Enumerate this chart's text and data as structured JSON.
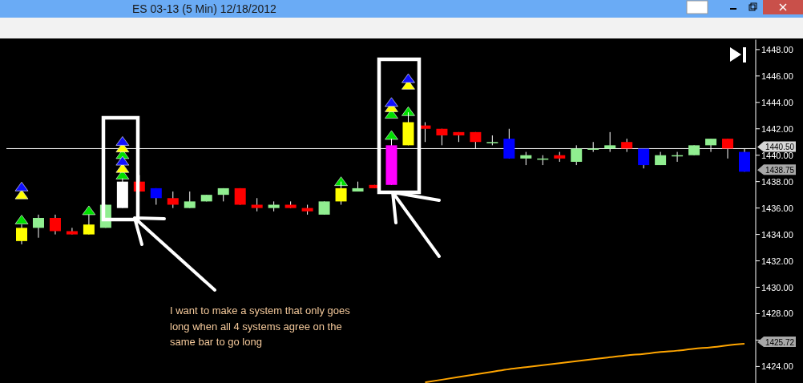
{
  "chart_data": {
    "type": "candlestick",
    "title": "ES 03-13 (5 Min)  12/18/2012",
    "categories": [
      null,
      null,
      null,
      null,
      null,
      null,
      null,
      null,
      null,
      null,
      null,
      null,
      null,
      null,
      null,
      null,
      null,
      null,
      null,
      null,
      null,
      null,
      null,
      null,
      null,
      null,
      null,
      null,
      null,
      null,
      null,
      null,
      null,
      null,
      null,
      null,
      null,
      null,
      null,
      null,
      null,
      null,
      null,
      null
    ],
    "ohlc": [
      [
        1433.5,
        1434.75,
        1433.25,
        1434.5
      ],
      [
        1434.5,
        1435.5,
        1433.75,
        1435.25
      ],
      [
        1435.25,
        1435.5,
        1434,
        1434.25
      ],
      [
        1434.25,
        1434.5,
        1434,
        1434
      ],
      [
        1434,
        1435.5,
        1434,
        1434.75
      ],
      [
        1434.5,
        1436.25,
        1434.5,
        1436.25
      ],
      [
        1436,
        1438.25,
        1436,
        1438
      ],
      [
        1438,
        1438.5,
        1437.25,
        1437.25
      ],
      [
        1437.5,
        1437.5,
        1436.25,
        1436.75
      ],
      [
        1436.75,
        1437.25,
        1436,
        1436.25
      ],
      [
        1436,
        1437.25,
        1436,
        1436.5
      ],
      [
        1436.5,
        1437,
        1436.5,
        1437
      ],
      [
        1437,
        1437.5,
        1436.5,
        1437.5
      ],
      [
        1437.5,
        1437.5,
        1436.25,
        1436.25
      ],
      [
        1436.25,
        1436.75,
        1435.75,
        1436
      ],
      [
        1436,
        1436.5,
        1435.75,
        1436.25
      ],
      [
        1436.25,
        1436.5,
        1436,
        1436
      ],
      [
        1436,
        1436.25,
        1435.5,
        1435.75
      ],
      [
        1435.5,
        1436.5,
        1435.5,
        1436.5
      ],
      [
        1436.5,
        1438,
        1436.25,
        1437.5
      ],
      [
        1437.25,
        1438,
        1437.25,
        1437.5
      ],
      [
        1437.75,
        1437.75,
        1437.5,
        1437.5
      ],
      [
        1437.75,
        1441.25,
        1437.75,
        1440.75
      ],
      [
        1440.75,
        1443.25,
        1440.75,
        1442.5
      ],
      [
        1442.25,
        1442.5,
        1441,
        1442
      ],
      [
        1442,
        1442,
        1440.75,
        1441.5
      ],
      [
        1441.75,
        1441.75,
        1441,
        1441.5
      ],
      [
        1441.75,
        1441.75,
        1440.5,
        1441
      ],
      [
        1441,
        1441.5,
        1440.75,
        1441
      ],
      [
        1441.25,
        1442,
        1439.75,
        1439.75
      ],
      [
        1439.75,
        1440.25,
        1439.25,
        1440
      ],
      [
        1439.75,
        1440,
        1439.25,
        1439.75
      ],
      [
        1440,
        1440.25,
        1439.5,
        1439.75
      ],
      [
        1439.5,
        1440.75,
        1439.25,
        1440.5
      ],
      [
        1440.5,
        1441,
        1440.25,
        1440.5
      ],
      [
        1440.5,
        1441.75,
        1440.25,
        1440.75
      ],
      [
        1441,
        1441.25,
        1440.25,
        1440.5
      ],
      [
        1440.5,
        1440.5,
        1439,
        1439.25
      ],
      [
        1439.25,
        1440.25,
        1439.25,
        1440
      ],
      [
        1440,
        1440.25,
        1439.5,
        1440
      ],
      [
        1440,
        1440.75,
        1440,
        1440.75
      ],
      [
        1440.75,
        1441.25,
        1440.25,
        1441.25
      ],
      [
        1441.25,
        1441.25,
        1439.75,
        1440.5
      ],
      [
        1440.25,
        1440.5,
        1438.75,
        1438.75
      ]
    ],
    "colors": [
      "#ffff00",
      "#90ee90",
      "#ff0000",
      "#ff0000",
      "#ffff00",
      "#90ee90",
      "#ffffff",
      "#ff0000",
      "#0000ff",
      "#ff0000",
      "#90ee90",
      "#90ee90",
      "#90ee90",
      "#ff0000",
      "#ff0000",
      "#90ee90",
      "#ff0000",
      "#ff0000",
      "#90ee90",
      "#ffff00",
      "#90ee90",
      "#ff0000",
      "#ff00ff",
      "#ffff00",
      "#ff0000",
      "#ff0000",
      "#ff0000",
      "#ff0000",
      "#90ee90",
      "#0000ff",
      "#90ee90",
      "#90ee90",
      "#ff0000",
      "#90ee90",
      "#90ee90",
      "#90ee90",
      "#ff0000",
      "#0000ff",
      "#90ee90",
      "#90ee90",
      "#90ee90",
      "#90ee90",
      "#ff0000",
      "#0000ff"
    ],
    "series": [
      {
        "type": "line",
        "color": "#ffa500",
        "values": [
          null,
          null,
          null,
          null,
          null,
          null,
          null,
          null,
          null,
          null,
          null,
          null,
          null,
          null,
          null,
          null,
          null,
          null,
          null,
          null,
          null,
          null,
          null,
          null,
          1422.8,
          1423.0,
          1423.2,
          1423.4,
          1423.6,
          1423.8,
          1423.95,
          1424.1,
          1424.25,
          1424.4,
          1424.55,
          1424.7,
          1424.85,
          1424.95,
          1425.1,
          1425.2,
          1425.35,
          1425.45,
          1425.6,
          1425.72
        ]
      },
      {
        "type": "scatter",
        "marker": "triangle",
        "color": "#00e000",
        "values": [
          1435.1,
          null,
          null,
          null,
          1435.8,
          null,
          1438.5,
          null,
          null,
          null,
          null,
          null,
          null,
          null,
          null,
          null,
          null,
          null,
          null,
          1438.0,
          null,
          null,
          1441.5,
          1443.3,
          null,
          null,
          null,
          null,
          null,
          null,
          null,
          null,
          null,
          null,
          null,
          null,
          null,
          null,
          null,
          null,
          null,
          null,
          null,
          null
        ]
      },
      {
        "type": "scatter",
        "marker": "triangle",
        "color": "#00e000",
        "values": [
          null,
          null,
          null,
          null,
          null,
          null,
          1440.05,
          null,
          null,
          null,
          null,
          null,
          null,
          null,
          null,
          null,
          null,
          null,
          null,
          null,
          null,
          null,
          1443.1,
          null,
          null,
          null,
          null,
          null,
          null,
          null,
          null,
          null,
          null,
          null,
          null,
          null,
          null,
          null,
          null,
          null,
          null,
          null,
          null,
          null
        ]
      },
      {
        "type": "scatter",
        "marker": "triangle",
        "color": "#ffff00",
        "values": [
          1437.0,
          null,
          null,
          null,
          null,
          null,
          1439.0,
          null,
          null,
          null,
          null,
          null,
          null,
          null,
          null,
          null,
          null,
          null,
          null,
          null,
          null,
          null,
          1443.6,
          1445.3,
          null,
          null,
          null,
          null,
          null,
          null,
          null,
          null,
          null,
          null,
          null,
          null,
          null,
          null,
          null,
          null,
          null,
          null,
          null,
          null
        ]
      },
      {
        "type": "scatter",
        "marker": "triangle",
        "color": "#ffff00",
        "values": [
          null,
          null,
          null,
          null,
          null,
          null,
          1440.55,
          null,
          null,
          null,
          null,
          null,
          null,
          null,
          null,
          null,
          null,
          null,
          null,
          null,
          null,
          null,
          null,
          null,
          null,
          null,
          null,
          null,
          null,
          null,
          null,
          null,
          null,
          null,
          null,
          null,
          null,
          null,
          null,
          null,
          null,
          null,
          null,
          null
        ]
      },
      {
        "type": "scatter",
        "marker": "triangle",
        "color": "#1010ff",
        "values": [
          1437.6,
          null,
          null,
          null,
          null,
          null,
          1439.55,
          null,
          null,
          null,
          null,
          null,
          null,
          null,
          null,
          null,
          null,
          null,
          null,
          null,
          null,
          null,
          1444.0,
          1445.8,
          null,
          null,
          null,
          null,
          null,
          null,
          null,
          null,
          null,
          null,
          null,
          null,
          null,
          null,
          null,
          null,
          null,
          null,
          null,
          null
        ]
      },
      {
        "type": "scatter",
        "marker": "triangle",
        "color": "#1010ff",
        "values": [
          null,
          null,
          null,
          null,
          null,
          null,
          1441.05,
          null,
          null,
          null,
          null,
          null,
          null,
          null,
          null,
          null,
          null,
          null,
          null,
          null,
          null,
          null,
          null,
          null,
          null,
          null,
          null,
          null,
          null,
          null,
          null,
          null,
          null,
          null,
          null,
          null,
          null,
          null,
          null,
          null,
          null,
          null,
          null,
          null
        ]
      }
    ],
    "ylim": [
      1422.75,
      1448.75
    ],
    "yticks": [
      {
        "value": 1424,
        "label": "1424.00"
      },
      {
        "value": 1426,
        "label": null
      },
      {
        "value": 1428,
        "label": "1428.00"
      },
      {
        "value": 1430,
        "label": "1430.00"
      },
      {
        "value": 1432,
        "label": "1432.00"
      },
      {
        "value": 1434,
        "label": "1434.00"
      },
      {
        "value": 1436,
        "label": "1436.00"
      },
      {
        "value": 1438,
        "label": "1438.00"
      },
      {
        "value": 1440,
        "label": "1440.00"
      },
      {
        "value": 1442,
        "label": "1442.00"
      },
      {
        "value": 1444,
        "label": "1444.00"
      },
      {
        "value": 1446,
        "label": "1446.00"
      },
      {
        "value": 1448,
        "label": "1448.00"
      }
    ],
    "ref_lines": [
      {
        "axis": "y",
        "value": 1440.5,
        "label": "1440.50",
        "color": "#ffffff"
      }
    ],
    "annotations": [
      "1438.75",
      "1425.72",
      "I want to make a system that only goes long when all 4 systems agree on the same bar to go long"
    ],
    "grid": false,
    "tick_labels": "y"
  }
}
